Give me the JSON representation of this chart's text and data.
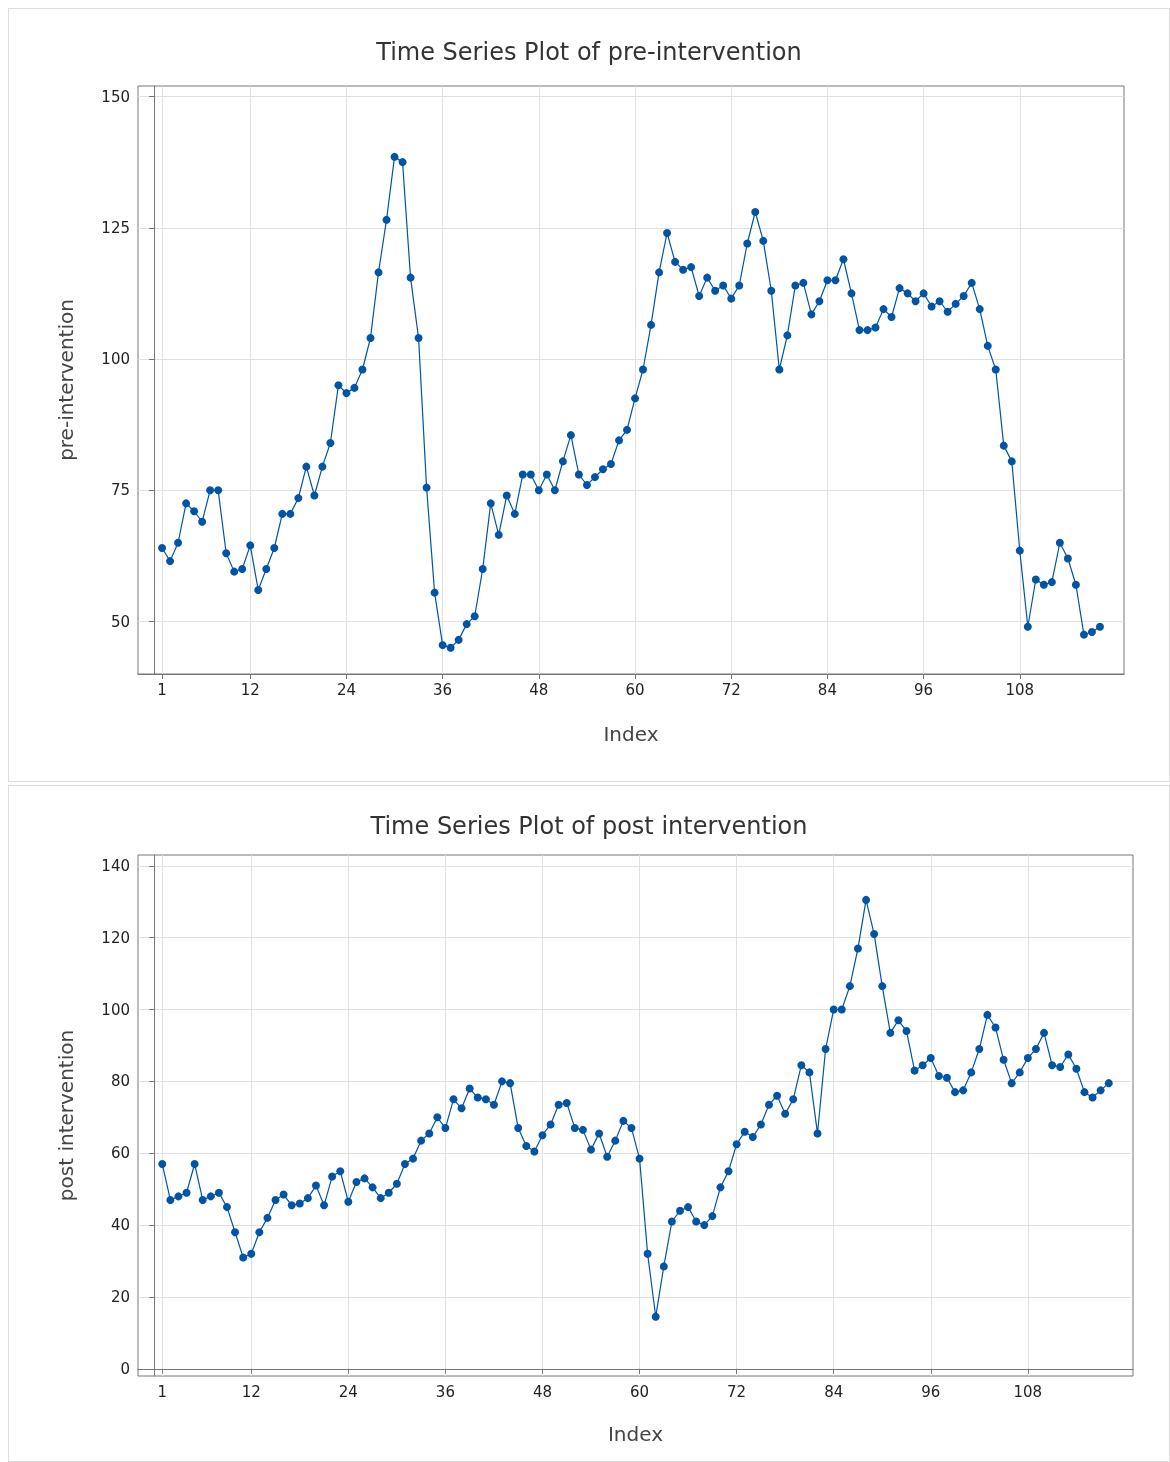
{
  "chart_data": [
    {
      "type": "line",
      "title": "Time Series Plot of pre-intervention",
      "xlabel": "Index",
      "ylabel": "pre-intervention",
      "color": "#0054a6",
      "marker": "circle",
      "grid": true,
      "x": [
        1,
        2,
        3,
        4,
        5,
        6,
        7,
        8,
        9,
        10,
        11,
        12,
        13,
        14,
        15,
        16,
        17,
        18,
        19,
        20,
        21,
        22,
        23,
        24,
        25,
        26,
        27,
        28,
        29,
        30,
        31,
        32,
        33,
        34,
        35,
        36,
        37,
        38,
        39,
        40,
        41,
        42,
        43,
        44,
        45,
        46,
        47,
        48,
        49,
        50,
        51,
        52,
        53,
        54,
        55,
        56,
        57,
        58,
        59,
        60,
        61,
        62,
        63,
        64,
        65,
        66,
        67,
        68,
        69,
        70,
        71,
        72,
        73,
        74,
        75,
        76,
        77,
        78,
        79,
        80,
        81,
        82,
        83,
        84,
        85,
        86,
        87,
        88,
        89,
        90,
        91,
        92,
        93,
        94,
        95,
        96,
        97,
        98,
        99,
        100,
        101,
        102,
        103,
        104,
        105,
        106,
        107,
        108,
        109,
        110,
        111,
        112,
        113,
        114,
        115,
        116,
        117,
        118
      ],
      "values": [
        64,
        61.5,
        65,
        72.5,
        71,
        69,
        75,
        75,
        63,
        59.5,
        60,
        64.5,
        56,
        60,
        64,
        70.5,
        70.5,
        73.5,
        79.5,
        74,
        79.5,
        84,
        95,
        93.5,
        94.5,
        98,
        104,
        116.5,
        126.5,
        138.5,
        137.5,
        115.5,
        104,
        75.5,
        55.5,
        45.5,
        45,
        46.5,
        49.5,
        51,
        60,
        72.5,
        66.5,
        74,
        70.5,
        78,
        78,
        75,
        78,
        75,
        80.5,
        85.5,
        78,
        76,
        77.5,
        79,
        80,
        84.5,
        86.5,
        92.5,
        98,
        106.5,
        116.5,
        124,
        118.5,
        117,
        117.5,
        112,
        115.5,
        113,
        114,
        111.5,
        114,
        122,
        128,
        122.5,
        113,
        98,
        104.5,
        114,
        114.5,
        108.5,
        111,
        115,
        115,
        119,
        112.5,
        105.5,
        105.5,
        106,
        109.5,
        108,
        113.5,
        112.5,
        111,
        112.5,
        110,
        111,
        109,
        110.5,
        112,
        114.5,
        109.5,
        102.5,
        98,
        83.5,
        80.5,
        63.5,
        49,
        58,
        57,
        57.5,
        65,
        62,
        57,
        47.5,
        48,
        49
      ],
      "xlim": [
        -2,
        121
      ],
      "xticks": [
        1,
        12,
        24,
        36,
        48,
        60,
        72,
        84,
        96,
        108
      ],
      "ylim": [
        40,
        152
      ],
      "yticks": [
        50,
        75,
        100,
        125,
        150
      ]
    },
    {
      "type": "line",
      "title": "Time Series Plot of post intervention",
      "xlabel": "Index",
      "ylabel": "post intervention",
      "color": "#0054a6",
      "marker": "circle",
      "grid": true,
      "x": [
        1,
        2,
        3,
        4,
        5,
        6,
        7,
        8,
        9,
        10,
        11,
        12,
        13,
        14,
        15,
        16,
        17,
        18,
        19,
        20,
        21,
        22,
        23,
        24,
        25,
        26,
        27,
        28,
        29,
        30,
        31,
        32,
        33,
        34,
        35,
        36,
        37,
        38,
        39,
        40,
        41,
        42,
        43,
        44,
        45,
        46,
        47,
        48,
        49,
        50,
        51,
        52,
        53,
        54,
        55,
        56,
        57,
        58,
        59,
        60,
        61,
        62,
        63,
        64,
        65,
        66,
        67,
        68,
        69,
        70,
        71,
        72,
        73,
        74,
        75,
        76,
        77,
        78,
        79,
        80,
        81,
        82,
        83,
        84,
        85,
        86,
        87,
        88,
        89,
        90,
        91,
        92,
        93,
        94,
        95,
        96,
        97,
        98,
        99,
        100,
        101,
        102,
        103,
        104,
        105,
        106,
        107,
        108,
        109,
        110,
        111,
        112,
        113,
        114,
        115,
        116,
        117,
        118
      ],
      "values": [
        57,
        47,
        48,
        49,
        57,
        47,
        48,
        49,
        45,
        38,
        31,
        32,
        38,
        42,
        47,
        48.5,
        45.5,
        46,
        47.5,
        51,
        45.5,
        53.5,
        55,
        46.5,
        52,
        53,
        50.5,
        47.5,
        49,
        51.5,
        57,
        58.5,
        63.5,
        65.5,
        70,
        67,
        75,
        72.5,
        78,
        75.5,
        75,
        73.5,
        80,
        79.5,
        67,
        62,
        60.5,
        65,
        68,
        73.5,
        74,
        67,
        66.5,
        61,
        65.5,
        59,
        63.5,
        69,
        67,
        58.5,
        32,
        14.5,
        28.5,
        41,
        44,
        45,
        41,
        40,
        42.5,
        50.5,
        55,
        62.5,
        66,
        64.5,
        68,
        73.5,
        76,
        71,
        75,
        84.5,
        82.5,
        65.5,
        89,
        100,
        100,
        106.5,
        117,
        130.5,
        121,
        106.5,
        93.5,
        97,
        94,
        83,
        84.5,
        86.5,
        81.5,
        81,
        77,
        77.5,
        82.5,
        89,
        98.5,
        95,
        86,
        79.5,
        82.5,
        86.5,
        89,
        93.5,
        84.5,
        84,
        87.5,
        83.5,
        77,
        75.5,
        77.5,
        79.5
      ],
      "xlim": [
        -2,
        121
      ],
      "xticks": [
        1,
        12,
        24,
        36,
        48,
        60,
        72,
        84,
        96,
        108
      ],
      "ylim": [
        -2,
        143
      ],
      "yticks": [
        0,
        20,
        40,
        60,
        80,
        100,
        120,
        140
      ]
    }
  ]
}
